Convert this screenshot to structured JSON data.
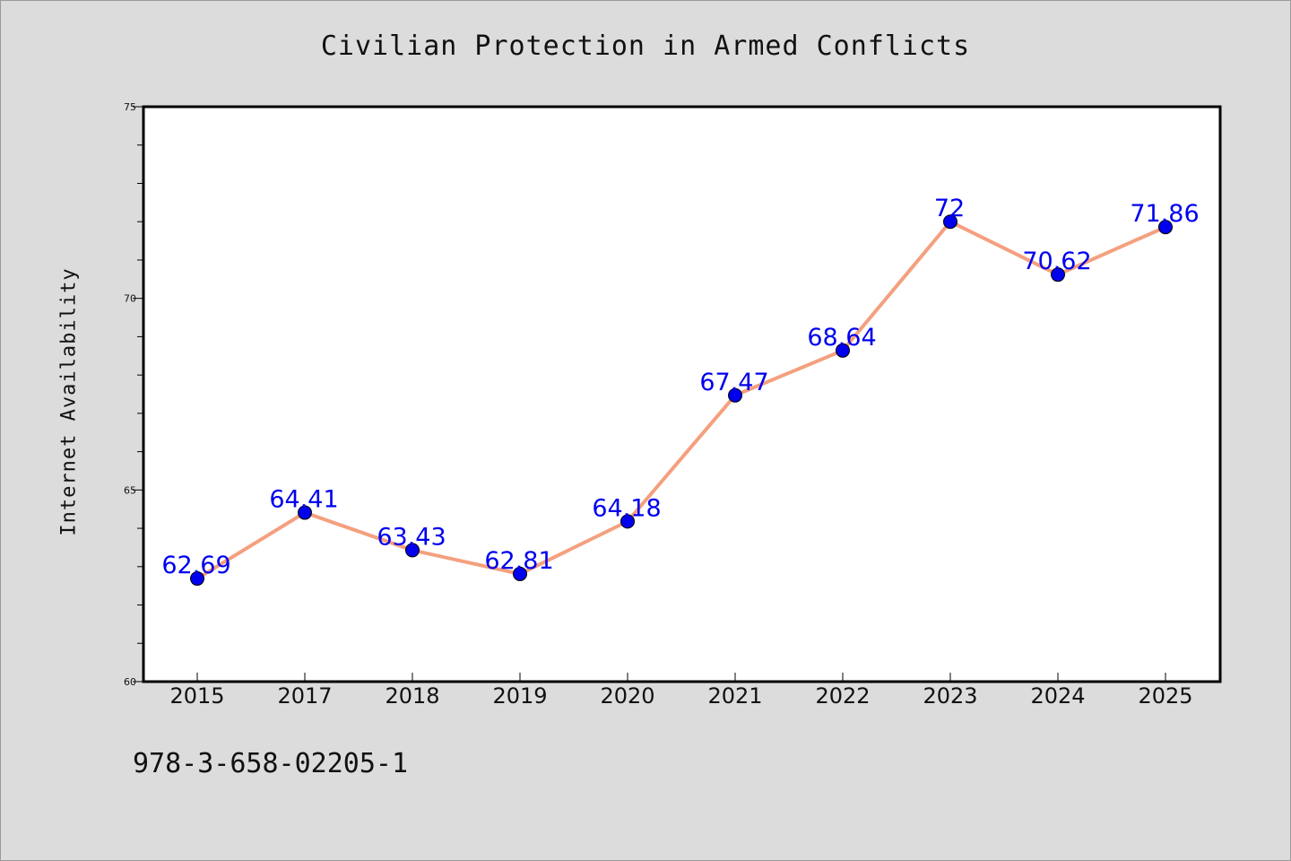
{
  "chart_data": {
    "type": "line",
    "title": "Civilian Protection in Armed Conflicts",
    "ylabel": "Internet Availability",
    "xlabel": "",
    "categories": [
      "2015",
      "2017",
      "2018",
      "2019",
      "2020",
      "2021",
      "2022",
      "2023",
      "2024",
      "2025"
    ],
    "values": [
      62.69,
      64.41,
      63.43,
      62.81,
      64.18,
      67.47,
      68.64,
      72,
      70.62,
      71.86
    ],
    "data_labels": [
      "62.69",
      "64.41",
      "63.43",
      "62.81",
      "64.18",
      "67.47",
      "68.64",
      "72",
      "70.62",
      "71.86"
    ],
    "ylim": [
      60,
      75
    ],
    "yticks": [
      60,
      65,
      70,
      75
    ],
    "grid": false,
    "colors": {
      "line": "#f4a07e",
      "marker": "#0000ee",
      "label": "#0000ee"
    }
  },
  "footer": {
    "isbn": "978-3-658-02205-1"
  }
}
